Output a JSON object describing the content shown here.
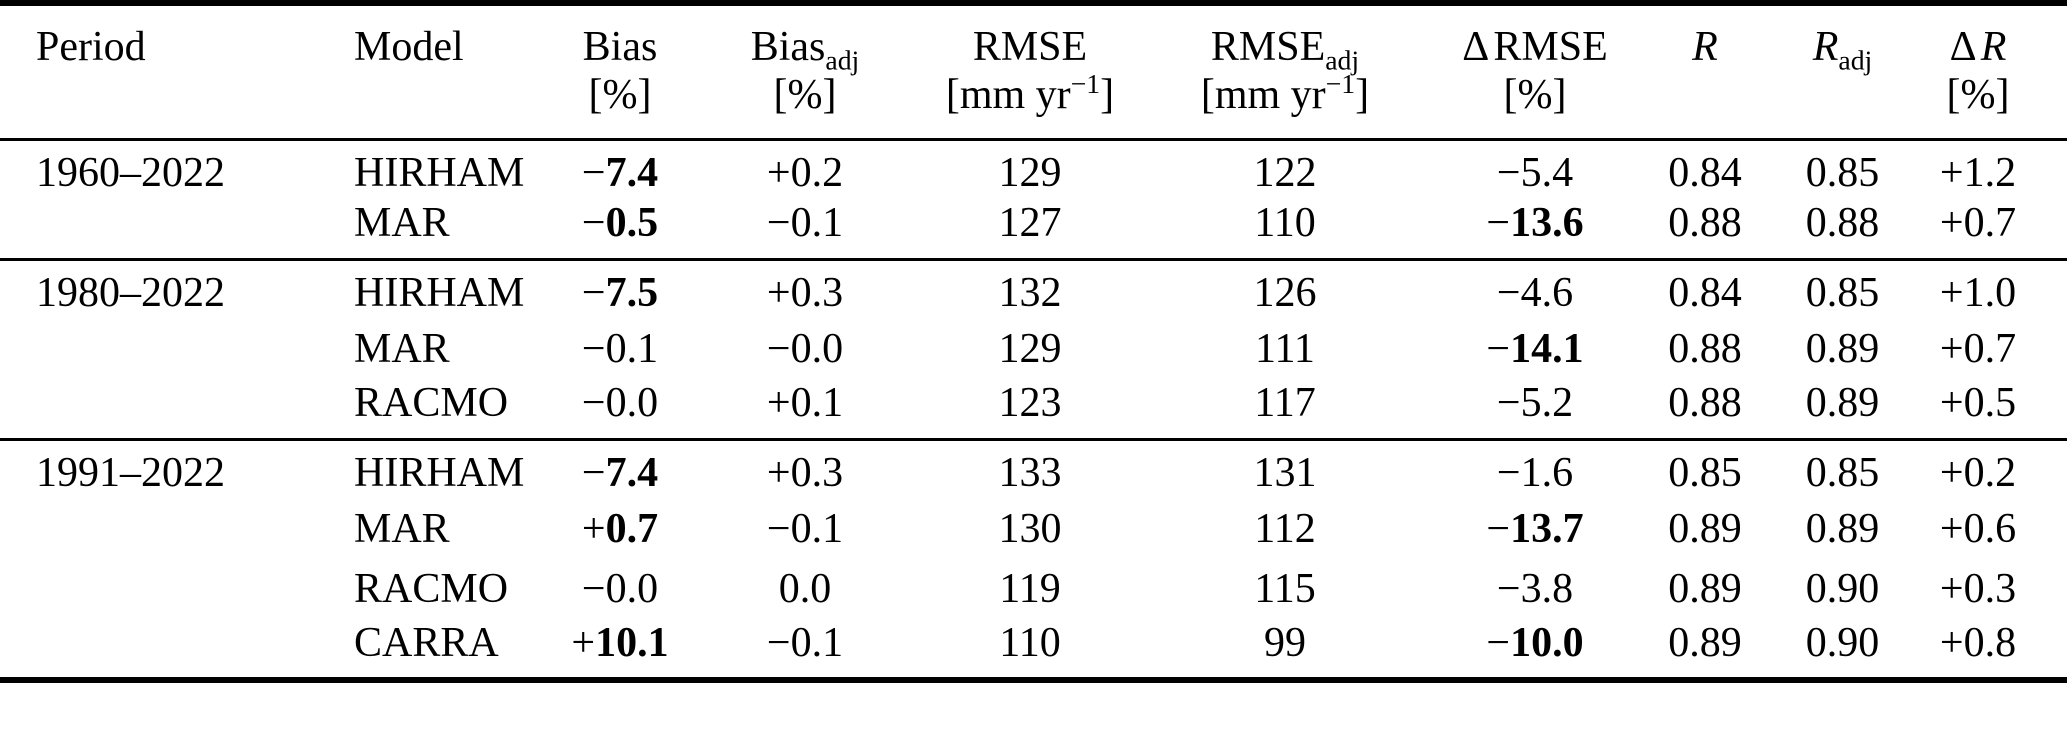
{
  "page": {
    "background_color": "#ffffff",
    "text_color": "#000000"
  },
  "table": {
    "header": {
      "columns": [
        {
          "name": "Period",
          "align": "left",
          "kind": "period"
        },
        {
          "name": "Model",
          "align": "left",
          "kind": "model"
        },
        {
          "name": "Bias",
          "unit": "[%]"
        },
        {
          "name": "Bias",
          "sub": "adj",
          "unit": "[%]"
        },
        {
          "name": "RMSE",
          "unit_main": "[mm yr",
          "unit_sup": "−1",
          "unit_end": "]"
        },
        {
          "name": "RMSE",
          "sub": "adj",
          "unit_main": "[mm yr",
          "unit_sup": "−1",
          "unit_end": "]"
        },
        {
          "pre": "Δ",
          "name": "RMSE",
          "unit": "[%]"
        },
        {
          "name": "R",
          "italic": true
        },
        {
          "name": "R",
          "italic": true,
          "sub": "adj"
        },
        {
          "pre": "Δ",
          "name": "R",
          "italic": true,
          "unit": "[%]",
          "kind": "last"
        }
      ]
    },
    "sections": [
      {
        "period": "1960–2022",
        "rows": [
          {
            "model": "HIRHAM",
            "values": [
              {
                "v": "−7.4",
                "bold": true
              },
              {
                "v": "+0.2"
              },
              {
                "v": "129"
              },
              {
                "v": "122"
              },
              {
                "v": "−5.4"
              },
              {
                "v": "0.84"
              },
              {
                "v": "0.85"
              },
              {
                "v": "+1.2"
              }
            ]
          },
          {
            "model": "MAR",
            "values": [
              {
                "v": "−0.5",
                "bold": true
              },
              {
                "v": "−0.1"
              },
              {
                "v": "127"
              },
              {
                "v": "110"
              },
              {
                "v": "−13.6",
                "bold": true
              },
              {
                "v": "0.88"
              },
              {
                "v": "0.88"
              },
              {
                "v": "+0.7"
              }
            ]
          }
        ]
      },
      {
        "period": "1980–2022",
        "rows": [
          {
            "model": "HIRHAM",
            "values": [
              {
                "v": "−7.5",
                "bold": true
              },
              {
                "v": "+0.3"
              },
              {
                "v": "132"
              },
              {
                "v": "126"
              },
              {
                "v": "−4.6"
              },
              {
                "v": "0.84"
              },
              {
                "v": "0.85"
              },
              {
                "v": "+1.0"
              }
            ]
          },
          {
            "model": "MAR",
            "values": [
              {
                "v": "−0.1"
              },
              {
                "v": "−0.0"
              },
              {
                "v": "129"
              },
              {
                "v": "111"
              },
              {
                "v": "−14.1",
                "bold": true
              },
              {
                "v": "0.88"
              },
              {
                "v": "0.89"
              },
              {
                "v": "+0.7"
              }
            ]
          },
          {
            "model": "RACMO",
            "values": [
              {
                "v": "−0.0"
              },
              {
                "v": "+0.1"
              },
              {
                "v": "123"
              },
              {
                "v": "117"
              },
              {
                "v": "−5.2"
              },
              {
                "v": "0.88"
              },
              {
                "v": "0.89"
              },
              {
                "v": "+0.5"
              }
            ]
          }
        ]
      },
      {
        "period": "1991–2022",
        "rows": [
          {
            "model": "HIRHAM",
            "values": [
              {
                "v": "−7.4",
                "bold": true
              },
              {
                "v": "+0.3"
              },
              {
                "v": "133"
              },
              {
                "v": "131"
              },
              {
                "v": "−1.6"
              },
              {
                "v": "0.85"
              },
              {
                "v": "0.85"
              },
              {
                "v": "+0.2"
              }
            ]
          },
          {
            "model": "MAR",
            "values": [
              {
                "v": "+0.7",
                "bold": true
              },
              {
                "v": "−0.1"
              },
              {
                "v": "130"
              },
              {
                "v": "112"
              },
              {
                "v": "−13.7",
                "bold": true
              },
              {
                "v": "0.89"
              },
              {
                "v": "0.89"
              },
              {
                "v": "+0.6"
              }
            ]
          },
          {
            "model": "RACMO",
            "values": [
              {
                "v": "−0.0"
              },
              {
                "v": "0.0"
              },
              {
                "v": "119"
              },
              {
                "v": "115"
              },
              {
                "v": "−3.8"
              },
              {
                "v": "0.89"
              },
              {
                "v": "0.90"
              },
              {
                "v": "+0.3"
              }
            ]
          },
          {
            "model": "CARRA",
            "values": [
              {
                "v": "+10.1",
                "bold": true
              },
              {
                "v": "−0.1"
              },
              {
                "v": "110"
              },
              {
                "v": "99"
              },
              {
                "v": "−10.0",
                "bold": true
              },
              {
                "v": "0.89"
              },
              {
                "v": "0.90"
              },
              {
                "v": "+0.8"
              }
            ]
          }
        ]
      }
    ]
  }
}
